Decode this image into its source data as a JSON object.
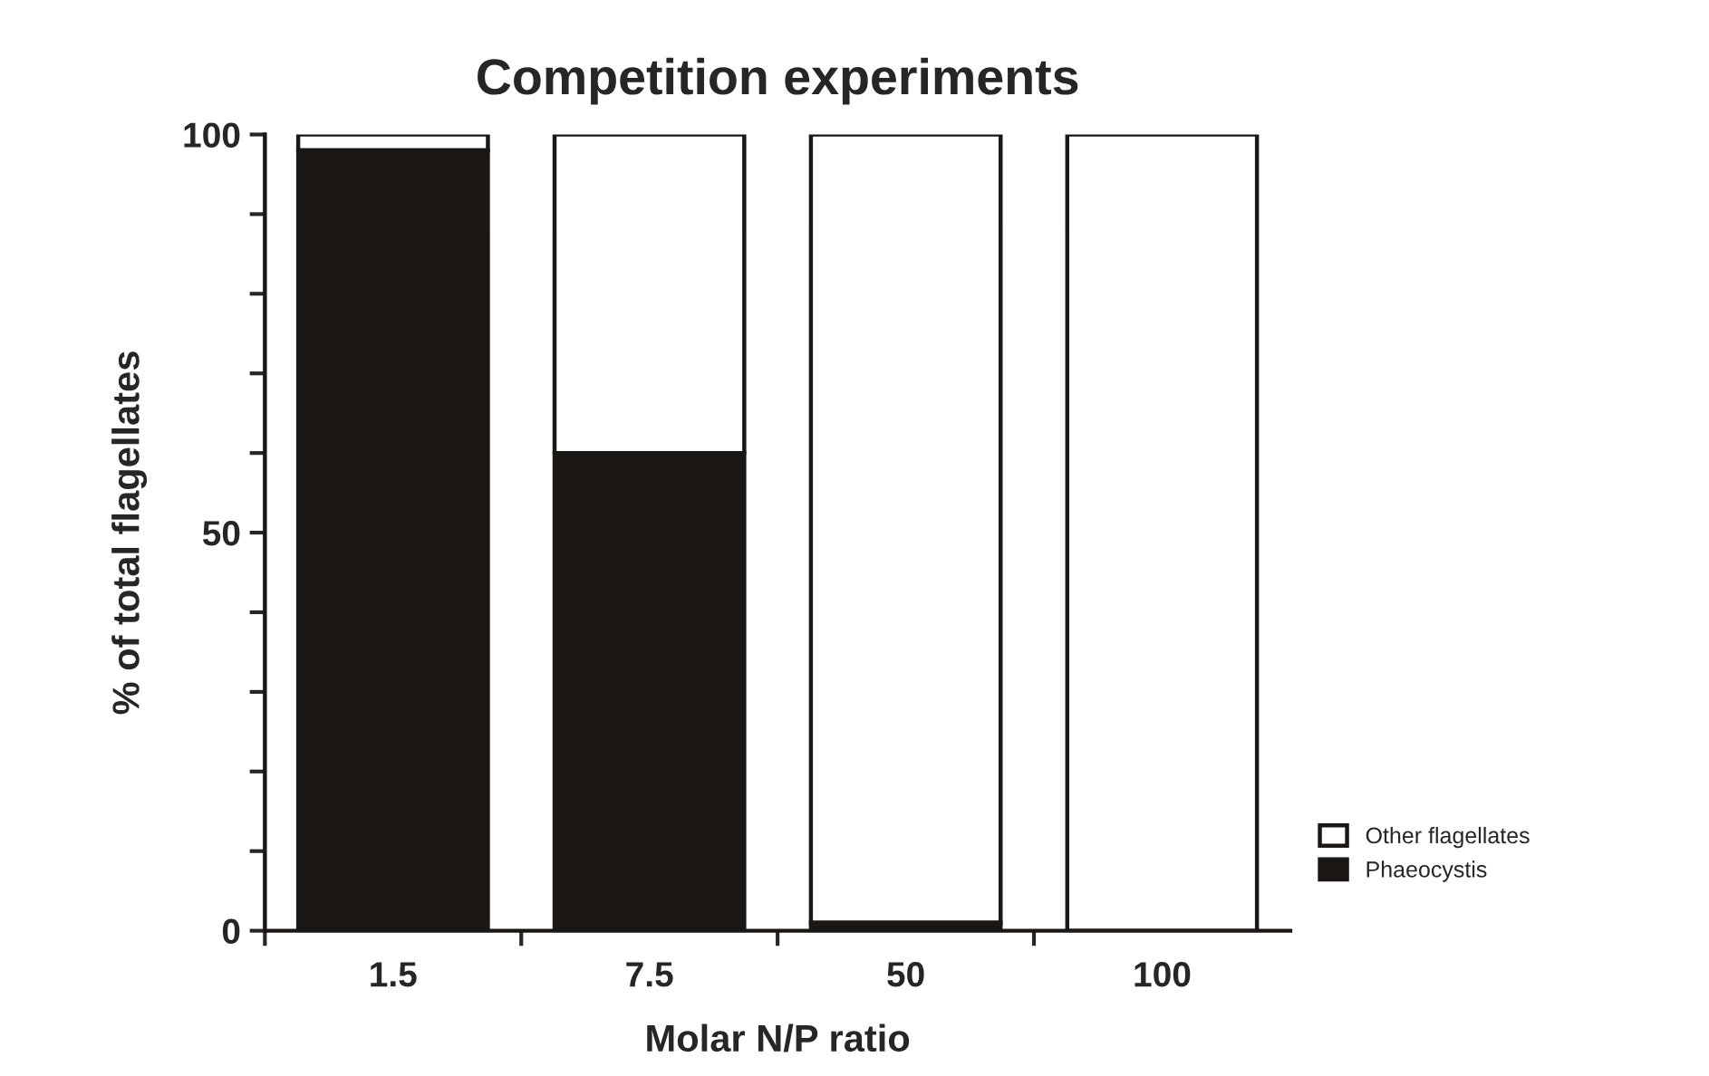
{
  "chart_data": {
    "type": "bar",
    "title": "Competition experiments",
    "xlabel": "Molar N/P ratio",
    "ylabel": "% of total flagellates",
    "categories": [
      "1.5",
      "7.5",
      "50",
      "100"
    ],
    "stacked": true,
    "series": [
      {
        "name": "Phaeocystis",
        "color": "#1a1714",
        "values": [
          98,
          60,
          1,
          0
        ]
      },
      {
        "name": "Other flagellates",
        "color": "#ffffff",
        "values": [
          2,
          40,
          99,
          100
        ]
      }
    ],
    "ylim": [
      0,
      100
    ],
    "yticks": [
      0,
      {
        "value": 10,
        "label": null
      },
      {
        "value": 20,
        "label": null
      },
      {
        "value": 30,
        "label": null
      },
      {
        "value": 40,
        "label": null
      },
      50,
      {
        "value": 60,
        "label": null
      },
      {
        "value": 70,
        "label": null
      },
      {
        "value": 80,
        "label": null
      },
      {
        "value": 90,
        "label": null
      },
      100
    ],
    "legend": "right",
    "grid": false
  }
}
